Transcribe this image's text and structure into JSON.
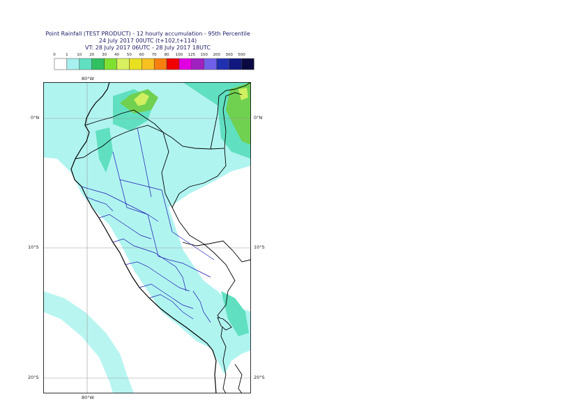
{
  "header": {
    "line1": "Point Rainfall (TEST PRODUCT) - 12 hourly accumulation - 95th Percentile",
    "line2": "24 July 2017 00UTC (t+102,t+114)",
    "line3": "VT: 28 July 2017 06UTC - 28 July 2017 18UTC"
  },
  "legend": {
    "thresholds": [
      "0",
      "1",
      "10",
      "20",
      "30",
      "40",
      "50",
      "60",
      "70",
      "80",
      "100",
      "125",
      "150",
      "200",
      "300",
      "500"
    ],
    "colors": [
      "#ffffff",
      "#a8f0f0",
      "#60e0c0",
      "#30c060",
      "#80e030",
      "#d8f060",
      "#e8e020",
      "#f8c020",
      "#f88010",
      "#f00000",
      "#e000e0",
      "#a020c0",
      "#7060e8",
      "#2030b0",
      "#101880",
      "#0a0a40"
    ]
  },
  "map": {
    "lat_labels": [
      "0°N",
      "10°S",
      "20°S"
    ],
    "lon_labels": [
      "80°W",
      "80°W"
    ],
    "colors": {
      "ocean": "#ffffff",
      "light_cyan": "#b0f4f0",
      "teal": "#60e0c0",
      "green": "#70d050",
      "yellow_green": "#d0f060",
      "country_border": "#000000",
      "region_border": "#1a1ab0",
      "grid": "#9a9a9a"
    }
  }
}
